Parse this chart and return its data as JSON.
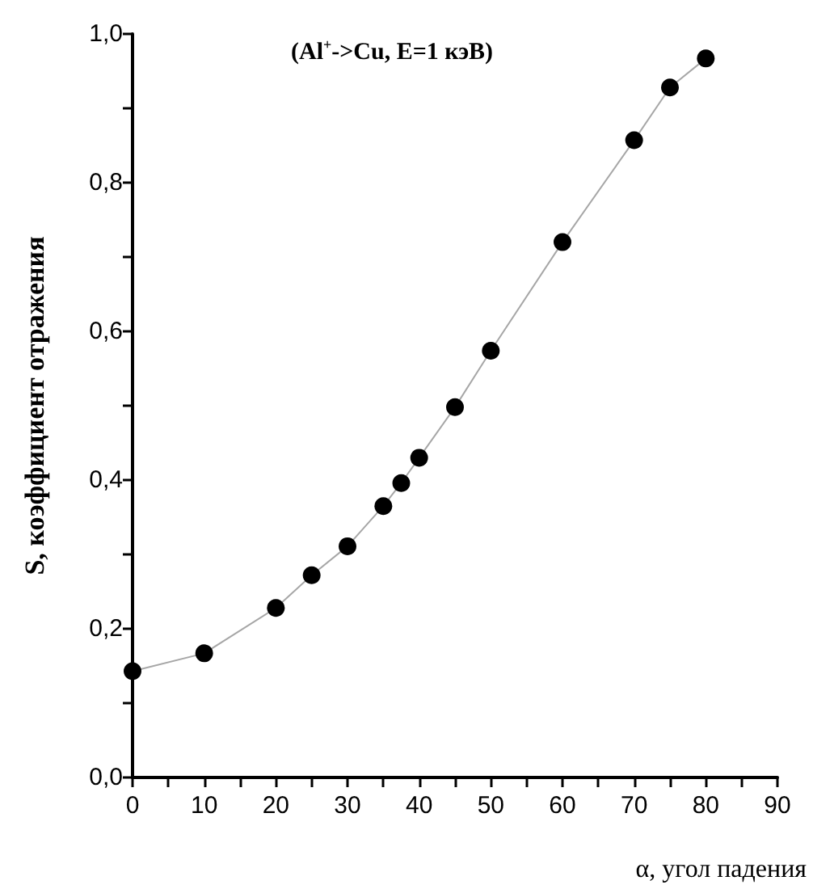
{
  "chart_data": {
    "type": "line",
    "title": "(Al$^{+}$->Cu, E=1 кэВ)",
    "xlabel": "α, угол падения",
    "ylabel": "S, коэффициент отражения",
    "x": [
      0,
      10,
      20,
      25,
      30,
      35,
      37.5,
      40,
      45,
      50,
      60,
      70,
      75,
      80
    ],
    "series": [
      {
        "color": "#000000",
        "values": [
          0.143,
          0.167,
          0.228,
          0.272,
          0.311,
          0.365,
          0.396,
          0.43,
          0.498,
          0.574,
          0.72,
          0.857,
          0.928,
          0.967
        ]
      }
    ],
    "xlim": [
      0,
      90
    ],
    "xticks": [
      0,
      10,
      20,
      30,
      40,
      50,
      60,
      70,
      80,
      90
    ],
    "ylim": [
      0,
      1
    ],
    "yticks": [
      {
        "value": 0,
        "label": "0,0"
      },
      {
        "value": 0.2,
        "label": "0,2"
      },
      {
        "value": 0.4,
        "label": "0,4"
      },
      {
        "value": 0.6,
        "label": "0,6"
      },
      {
        "value": 0.8,
        "label": "0,8"
      },
      {
        "value": 1,
        "label": "1,0"
      }
    ],
    "marker": "circle",
    "line_style": "solid",
    "grid": false
  }
}
